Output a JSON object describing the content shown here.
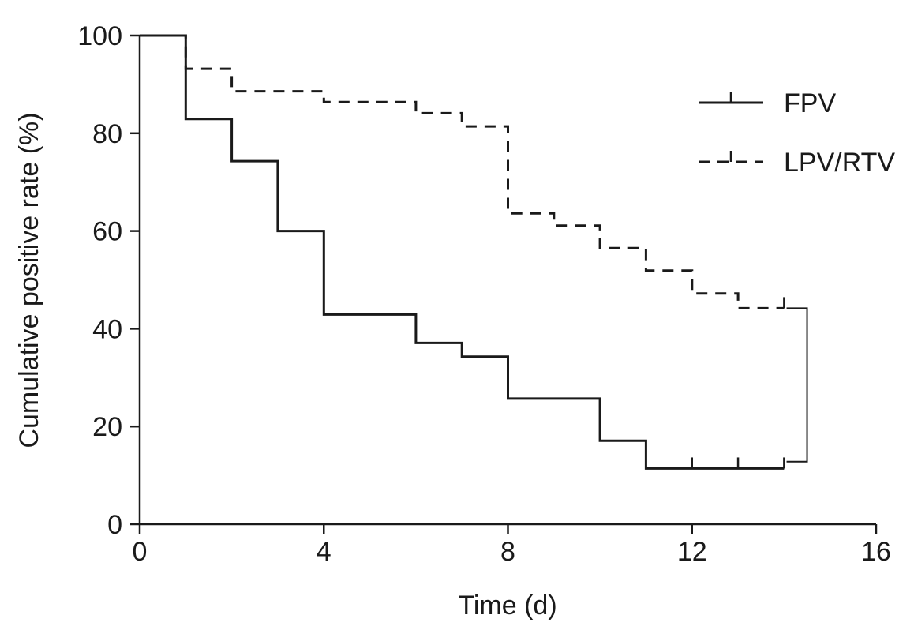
{
  "chart_data": {
    "type": "line",
    "step": true,
    "xlabel": "Time (d)",
    "ylabel": "Cumulative positive rate (%)",
    "xlim": [
      0,
      16
    ],
    "ylim": [
      0,
      100
    ],
    "xticks": [
      0,
      4,
      8,
      12,
      16
    ],
    "yticks": [
      0,
      20,
      40,
      60,
      80,
      100
    ],
    "grid": false,
    "legend_position": "top-right",
    "series": [
      {
        "name": "FPV",
        "line_style": "solid",
        "color": "#1a1a1a",
        "points": [
          [
            0,
            100
          ],
          [
            1,
            100
          ],
          [
            1,
            82.9
          ],
          [
            2,
            82.9
          ],
          [
            2,
            74.3
          ],
          [
            3,
            74.3
          ],
          [
            3,
            60.0
          ],
          [
            4,
            60.0
          ],
          [
            4,
            42.9
          ],
          [
            6,
            42.9
          ],
          [
            6,
            37.1
          ],
          [
            7,
            37.1
          ],
          [
            7,
            34.3
          ],
          [
            8,
            34.3
          ],
          [
            8,
            25.7
          ],
          [
            10,
            25.7
          ],
          [
            10,
            17.1
          ],
          [
            11,
            17.1
          ],
          [
            11,
            11.4
          ],
          [
            14,
            11.4
          ]
        ],
        "censored": [
          [
            12,
            11.4
          ],
          [
            13,
            11.4
          ],
          [
            14,
            11.4
          ]
        ]
      },
      {
        "name": "LPV/RTV",
        "line_style": "dashed",
        "color": "#1a1a1a",
        "points": [
          [
            0,
            100
          ],
          [
            1,
            100
          ],
          [
            1,
            93.2
          ],
          [
            2,
            93.2
          ],
          [
            2,
            88.6
          ],
          [
            4,
            88.6
          ],
          [
            4,
            86.4
          ],
          [
            6,
            86.4
          ],
          [
            6,
            84.1
          ],
          [
            7,
            84.1
          ],
          [
            7,
            81.4
          ],
          [
            8,
            81.4
          ],
          [
            8,
            63.6
          ],
          [
            9,
            63.6
          ],
          [
            9,
            61.1
          ],
          [
            10,
            61.1
          ],
          [
            10,
            56.5
          ],
          [
            11,
            56.5
          ],
          [
            11,
            51.9
          ],
          [
            12,
            51.9
          ],
          [
            12,
            47.2
          ],
          [
            13,
            47.2
          ],
          [
            13,
            44.2
          ],
          [
            14,
            44.2
          ]
        ],
        "censored": [
          [
            14,
            44.2
          ]
        ]
      }
    ],
    "annotations": [
      {
        "type": "bracket",
        "x": 14.5,
        "y_from": 12.8,
        "y_to": 44.2
      }
    ]
  }
}
